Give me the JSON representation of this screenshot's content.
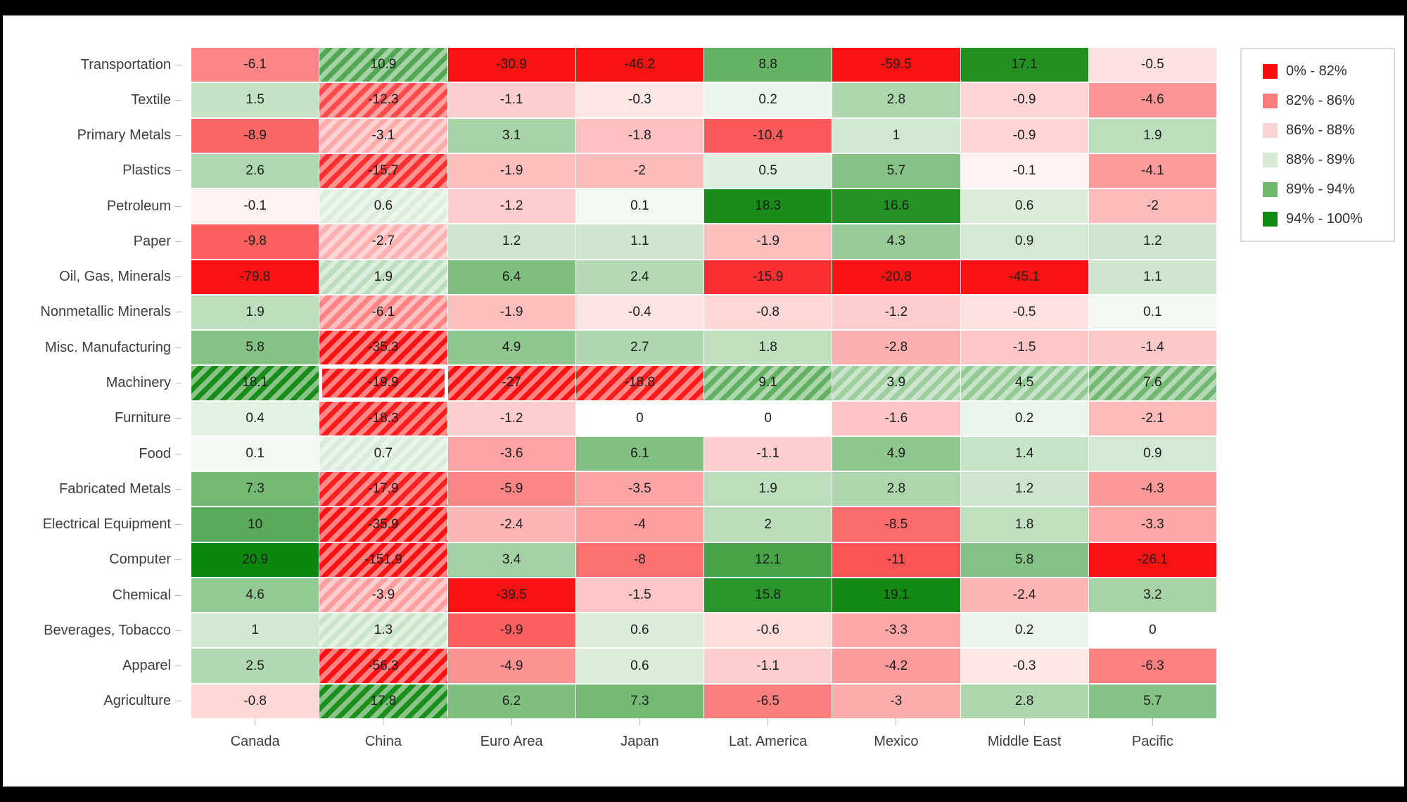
{
  "window": {
    "background": "#000000",
    "canvas_background": "#ffffff"
  },
  "chart_data": {
    "type": "heatmap",
    "x_categories": [
      "Canada",
      "China",
      "Euro Area",
      "Japan",
      "Lat. America",
      "Mexico",
      "Middle East",
      "Pacific"
    ],
    "y_categories": [
      "Transportation",
      "Textile",
      "Primary Metals",
      "Plastics",
      "Petroleum",
      "Paper",
      "Oil, Gas, Minerals",
      "Nonmetallic Minerals",
      "Misc. Manufacturing",
      "Machinery",
      "Furniture",
      "Food",
      "Fabricated Metals",
      "Electrical Equipment",
      "Computer",
      "Chemical",
      "Beverages, Tobacco",
      "Apparel",
      "Agriculture"
    ],
    "rows": [
      {
        "label": "Transportation",
        "values": [
          -6.1,
          10.9,
          -30.9,
          -46.2,
          8.8,
          -59.5,
          17.1,
          -0.5
        ]
      },
      {
        "label": "Textile",
        "values": [
          1.5,
          -12.3,
          -1.1,
          -0.3,
          0.2,
          2.8,
          -0.9,
          -4.6
        ]
      },
      {
        "label": "Primary Metals",
        "values": [
          -8.9,
          -3.1,
          3.1,
          -1.8,
          -10.4,
          1,
          -0.9,
          1.9
        ]
      },
      {
        "label": "Plastics",
        "values": [
          2.6,
          -15.7,
          -1.9,
          -2,
          0.5,
          5.7,
          -0.1,
          -4.1
        ]
      },
      {
        "label": "Petroleum",
        "values": [
          -0.1,
          0.6,
          -1.2,
          0.1,
          18.3,
          16.6,
          0.6,
          -2
        ]
      },
      {
        "label": "Paper",
        "values": [
          -9.8,
          -2.7,
          1.2,
          1.1,
          -1.9,
          4.3,
          0.9,
          1.2
        ]
      },
      {
        "label": "Oil, Gas, Minerals",
        "values": [
          -79.8,
          1.9,
          6.4,
          2.4,
          -15.9,
          -20.8,
          -45.1,
          1.1
        ]
      },
      {
        "label": "Nonmetallic Minerals",
        "values": [
          1.9,
          -6.1,
          -1.9,
          -0.4,
          -0.8,
          -1.2,
          -0.5,
          0.1
        ]
      },
      {
        "label": "Misc. Manufacturing",
        "values": [
          5.8,
          -35.3,
          4.9,
          2.7,
          1.8,
          -2.8,
          -1.5,
          -1.4
        ]
      },
      {
        "label": "Machinery",
        "values": [
          18.1,
          -19.9,
          -27,
          -18.8,
          9.1,
          3.9,
          4.5,
          7.6
        ]
      },
      {
        "label": "Furniture",
        "values": [
          0.4,
          -18.3,
          -1.2,
          0,
          0,
          -1.6,
          0.2,
          -2.1
        ]
      },
      {
        "label": "Food",
        "values": [
          0.1,
          0.7,
          -3.6,
          6.1,
          -1.1,
          4.9,
          1.4,
          0.9
        ]
      },
      {
        "label": "Fabricated Metals",
        "values": [
          7.3,
          -17.9,
          -5.9,
          -3.5,
          1.9,
          2.8,
          1.2,
          -4.3
        ]
      },
      {
        "label": "Electrical Equipment",
        "values": [
          10,
          -35.9,
          -2.4,
          -4,
          2,
          -8.5,
          1.8,
          -3.3
        ]
      },
      {
        "label": "Computer",
        "values": [
          20.9,
          -151.9,
          3.4,
          -8,
          12.1,
          -11,
          5.8,
          -26.1
        ]
      },
      {
        "label": "Chemical",
        "values": [
          4.6,
          -3.9,
          -39.5,
          -1.5,
          15.8,
          19.1,
          -2.4,
          3.2
        ]
      },
      {
        "label": "Beverages, Tobacco",
        "values": [
          1,
          1.3,
          -9.9,
          0.6,
          -0.6,
          -3.3,
          0.2,
          0
        ]
      },
      {
        "label": "Apparel",
        "values": [
          2.5,
          -56.3,
          -4.9,
          0.6,
          -1.1,
          -4.2,
          -0.3,
          -6.3
        ]
      },
      {
        "label": "Agriculture",
        "values": [
          -0.8,
          17.8,
          6.2,
          7.3,
          -6.5,
          -3,
          2.8,
          5.7
        ]
      }
    ],
    "hatched_column": "China",
    "hatched_row": "Machinery",
    "selected_cell": {
      "row": "Machinery",
      "column": "China",
      "value": -19.9
    },
    "color_scale": {
      "negative": "red",
      "positive": "green",
      "zero": "#ffffff"
    },
    "legend": {
      "position": "top-right",
      "entries": [
        {
          "label": "0% - 82%",
          "color": "#f90d0d"
        },
        {
          "label": "82% - 86%",
          "color": "#f97c7c"
        },
        {
          "label": "86% - 88%",
          "color": "#fbd3d3"
        },
        {
          "label": "88% - 89%",
          "color": "#d6ead6"
        },
        {
          "label": "89% - 94%",
          "color": "#6eb96e"
        },
        {
          "label": "94% - 100%",
          "color": "#0f8a0f"
        }
      ]
    }
  }
}
